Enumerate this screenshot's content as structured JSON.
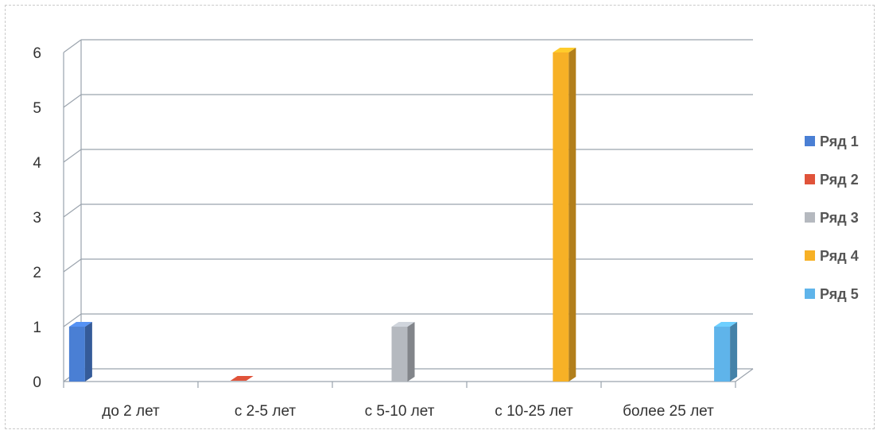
{
  "chart_data": {
    "type": "bar",
    "categories": [
      "до 2 лет",
      "с 2-5 лет",
      "с 5-10 лет",
      "с 10-25 лет",
      "более 25 лет"
    ],
    "series": [
      {
        "name": "Ряд 1",
        "color": "#4a7fd4",
        "values": [
          1,
          0,
          0,
          0,
          0
        ]
      },
      {
        "name": "Ряд 2",
        "color": "#e0533a",
        "values": [
          0,
          0,
          0,
          0,
          0
        ]
      },
      {
        "name": "Ряд 3",
        "color": "#b5b9bf",
        "values": [
          0,
          0,
          1,
          0,
          0
        ]
      },
      {
        "name": "Ряд 4",
        "color": "#f7b126",
        "values": [
          0,
          0,
          0,
          6,
          0
        ]
      },
      {
        "name": "Ряд 5",
        "color": "#5fb4ea",
        "values": [
          0,
          0,
          0,
          0,
          1
        ]
      }
    ],
    "yticks": [
      "0",
      "1",
      "2",
      "3",
      "4",
      "5",
      "6"
    ],
    "ylim": [
      0,
      6
    ],
    "grid": true,
    "legend": "right"
  }
}
